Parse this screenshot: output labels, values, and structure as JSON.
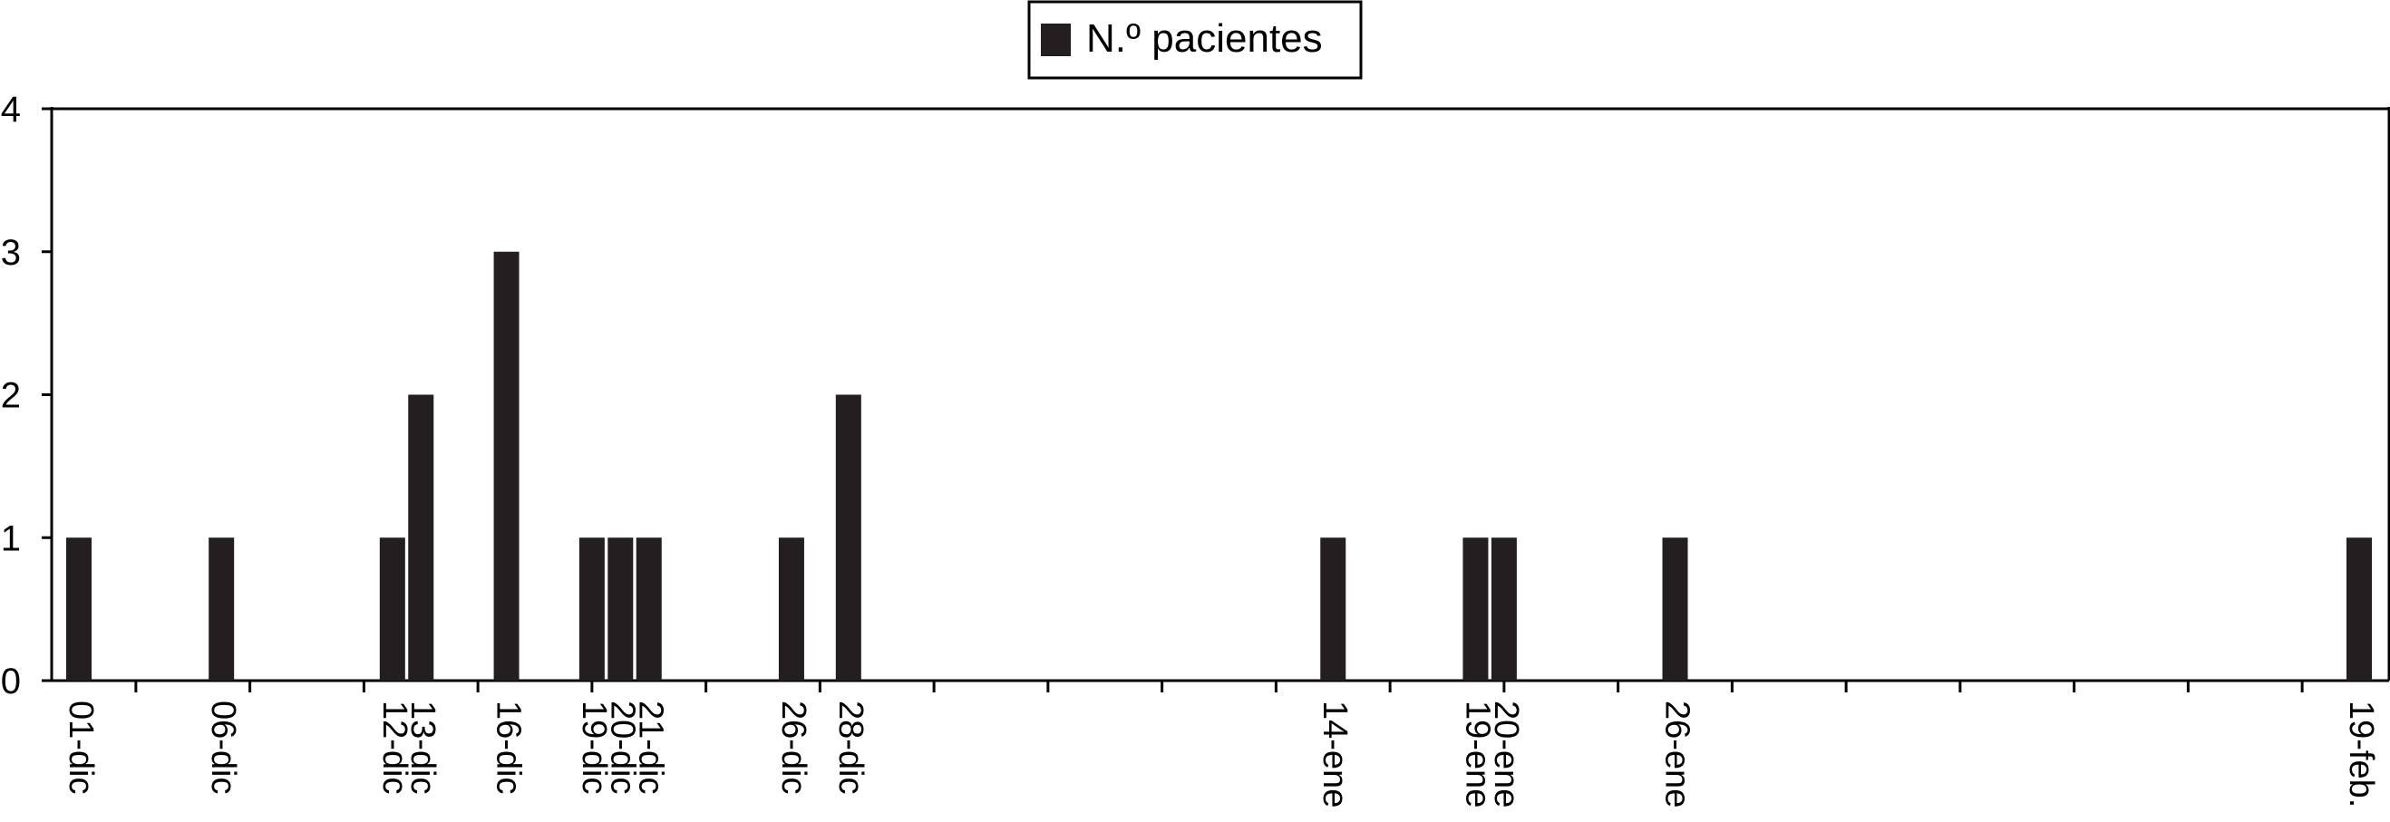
{
  "chart_data": {
    "type": "bar",
    "title": "",
    "xlabel": "",
    "ylabel": "",
    "categories": [
      "01-dic",
      "06-dic",
      "12-dic",
      "13-dic",
      "16-dic",
      "19-dic",
      "20-dic",
      "21-dic",
      "26-dic",
      "28-dic",
      "14-ene",
      "19-ene",
      "20-ene",
      "26-ene",
      "19-feb."
    ],
    "tick_dates": [
      "2000-12-01",
      "2000-12-06",
      "2000-12-12",
      "2000-12-13",
      "2000-12-16",
      "2000-12-19",
      "2000-12-20",
      "2000-12-21",
      "2000-12-26",
      "2000-12-28",
      "2001-01-14",
      "2001-01-19",
      "2001-01-20",
      "2001-01-26",
      "2001-02-19"
    ],
    "series": [
      {
        "name": "N.º pacientes",
        "values": [
          1,
          1,
          1,
          2,
          3,
          1,
          1,
          1,
          1,
          2,
          1,
          1,
          1,
          1,
          1
        ]
      }
    ],
    "ylim": [
      0,
      4
    ],
    "yticks": [
      0,
      1,
      2,
      3,
      4
    ],
    "grid": false,
    "legend": "top-center",
    "colors": {
      "bar": "#231f20",
      "axis": "#000000"
    }
  }
}
